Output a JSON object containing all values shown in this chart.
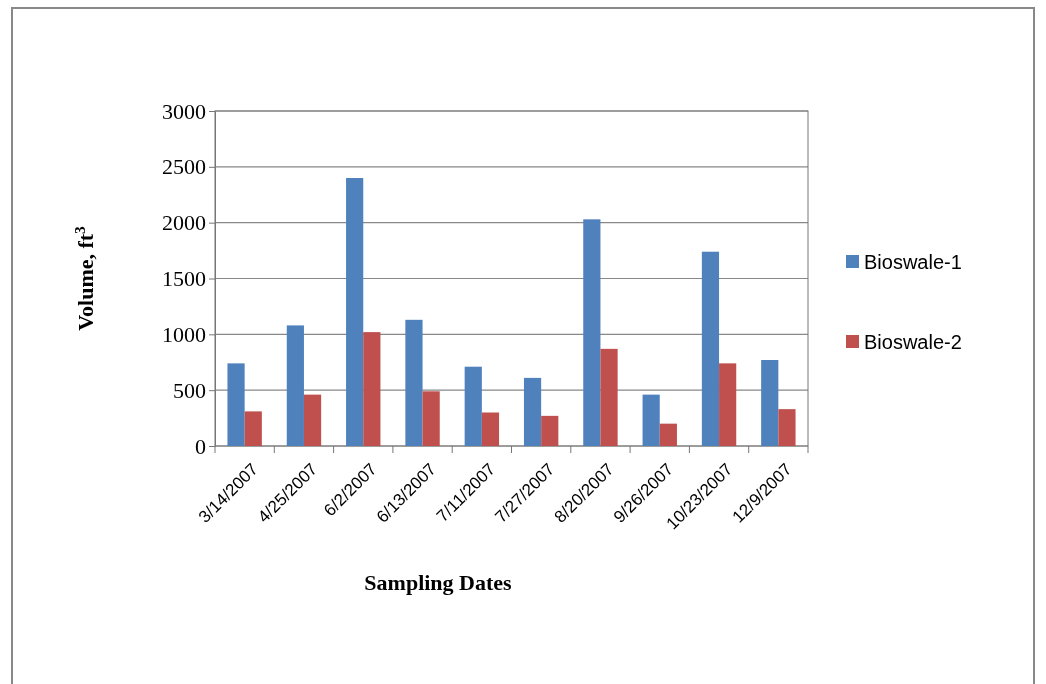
{
  "chart_data": {
    "type": "bar",
    "xlabel": "Sampling Dates",
    "ylabel": "Volume,  ft$^{3}$",
    "categories": [
      "3/14/2007",
      "4/25/2007",
      "6/2/2007",
      "6/13/2007",
      "7/11/2007",
      "7/27/2007",
      "8/20/2007",
      "9/26/2007",
      "10/23/2007",
      "12/9/2007"
    ],
    "series": [
      {
        "name": "Bioswale-1",
        "color": "#4f81bd",
        "values": [
          740,
          1080,
          2400,
          1130,
          710,
          610,
          2030,
          460,
          1740,
          770
        ]
      },
      {
        "name": "Bioswale-2",
        "color": "#c0504d",
        "values": [
          310,
          460,
          1020,
          490,
          300,
          270,
          870,
          200,
          740,
          330
        ]
      }
    ],
    "ylim": [
      0,
      3000
    ],
    "yticks": [
      0,
      500,
      1000,
      1500,
      2000,
      2500,
      3000
    ],
    "grid": "y",
    "legend": "right"
  }
}
